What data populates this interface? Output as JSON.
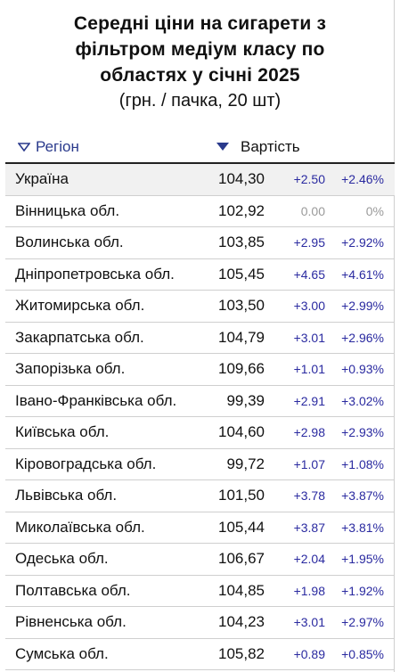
{
  "title_lines": [
    "Середні ціни на сигарети з",
    "фільтром медіум класу по",
    "областях у січні 2025"
  ],
  "subtitle": "(грн. / пачка, 20 шт)",
  "header": {
    "region": "Регіон",
    "value": "Вартість",
    "icons": [
      "sort-down-outline-icon",
      "sort-down-filled-icon"
    ],
    "accent": "#2a3a8c"
  },
  "colors": {
    "positive": "#2a2aa0",
    "neutral": "#9a9a9a",
    "highlight_row": "#f1f1f1"
  },
  "rows": [
    {
      "region": "Україна",
      "value": "104,30",
      "abs": "+2.50",
      "pct": "+2.46%"
    },
    {
      "region": "Вінницька обл.",
      "value": "102,92",
      "abs": "0.00",
      "pct": "0%"
    },
    {
      "region": "Волинська обл.",
      "value": "103,85",
      "abs": "+2.95",
      "pct": "+2.92%"
    },
    {
      "region": "Дніпропетровська обл.",
      "value": "105,45",
      "abs": "+4.65",
      "pct": "+4.61%"
    },
    {
      "region": "Житомирська обл.",
      "value": "103,50",
      "abs": "+3.00",
      "pct": "+2.99%"
    },
    {
      "region": "Закарпатська обл.",
      "value": "104,79",
      "abs": "+3.01",
      "pct": "+2.96%"
    },
    {
      "region": "Запорізька обл.",
      "value": "109,66",
      "abs": "+1.01",
      "pct": "+0.93%"
    },
    {
      "region": "Івано-Франківська обл.",
      "value": "99,39",
      "abs": "+2.91",
      "pct": "+3.02%"
    },
    {
      "region": "Київська обл.",
      "value": "104,60",
      "abs": "+2.98",
      "pct": "+2.93%"
    },
    {
      "region": "Кіровоградська обл.",
      "value": "99,72",
      "abs": "+1.07",
      "pct": "+1.08%"
    },
    {
      "region": "Львівська обл.",
      "value": "101,50",
      "abs": "+3.78",
      "pct": "+3.87%"
    },
    {
      "region": "Миколаївська обл.",
      "value": "105,44",
      "abs": "+3.87",
      "pct": "+3.81%"
    },
    {
      "region": "Одеська обл.",
      "value": "106,67",
      "abs": "+2.04",
      "pct": "+1.95%"
    },
    {
      "region": "Полтавська обл.",
      "value": "104,85",
      "abs": "+1.98",
      "pct": "+1.92%"
    },
    {
      "region": "Рівненська обл.",
      "value": "104,23",
      "abs": "+3.01",
      "pct": "+2.97%"
    },
    {
      "region": "Сумська обл.",
      "value": "105,82",
      "abs": "+0.89",
      "pct": "+0.85%"
    }
  ]
}
